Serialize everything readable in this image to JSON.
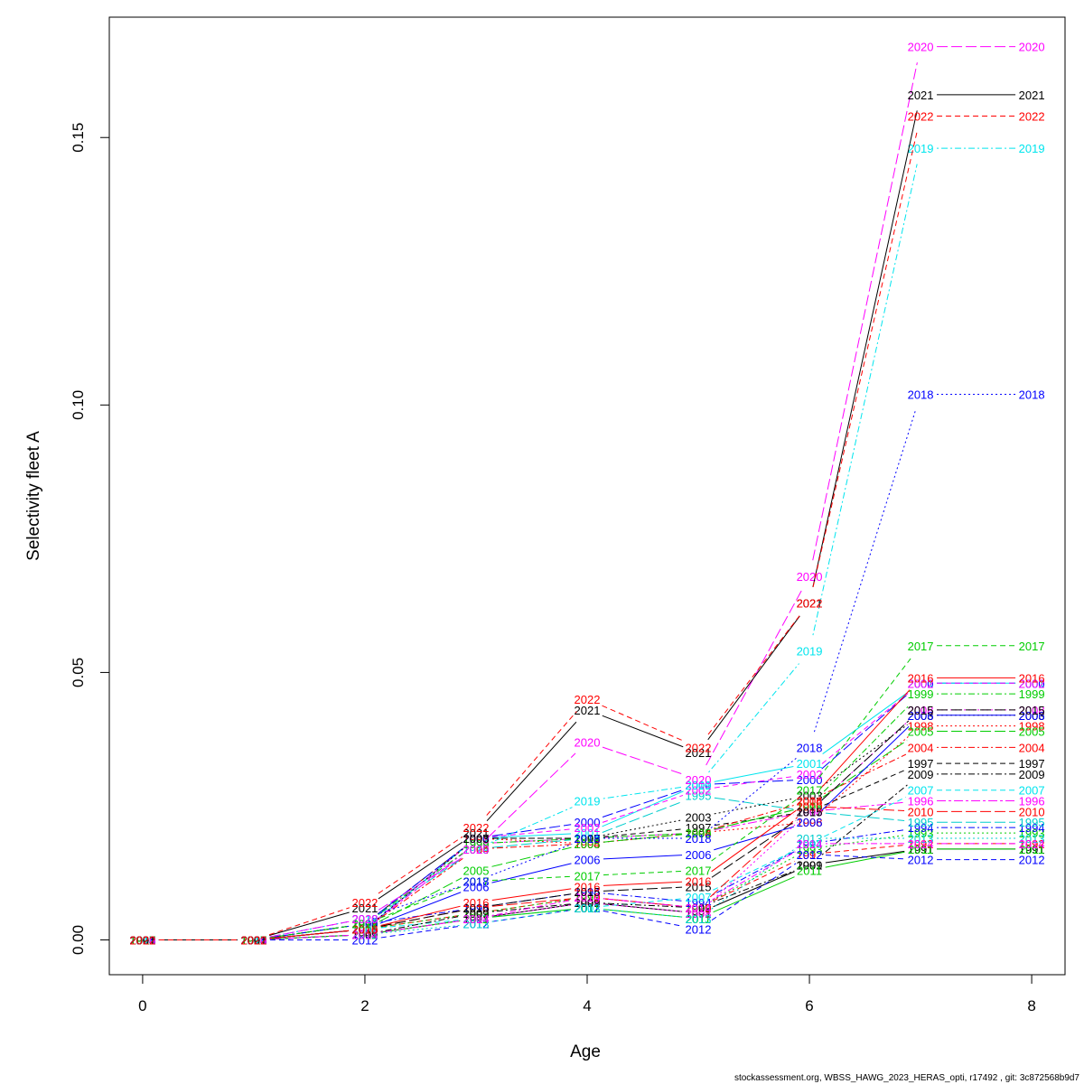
{
  "footer": "stockassessment.org, WBSS_HAWG_2023_HERAS_opti, r17492 , git: 3c872568b9d7",
  "chart_data": {
    "type": "line",
    "title": "",
    "xlabel": "Age",
    "ylabel": "Selectivity fleet A",
    "xlim": [
      -0.3,
      8.3
    ],
    "ylim": [
      -0.0065,
      0.1725
    ],
    "xticks": [
      0,
      2,
      4,
      6,
      8
    ],
    "xtick_labels": [
      "0",
      "2",
      "4",
      "6",
      "8"
    ],
    "yticks": [
      0.0,
      0.05,
      0.1,
      0.15
    ],
    "ytick_labels": [
      "0.00",
      "0.05",
      "0.10",
      "0.15"
    ],
    "x": [
      0,
      1,
      2,
      3,
      4,
      5,
      6,
      7,
      8
    ],
    "grid": false,
    "legend": "none",
    "series": [
      {
        "name": "1991",
        "color": "#000000",
        "dash": "",
        "values": [
          0,
          0,
          0.001,
          0.004,
          0.007,
          0.005,
          0.014,
          0.017,
          0.017
        ]
      },
      {
        "name": "1992",
        "color": "#ff0000",
        "dash": "6,4",
        "values": [
          0,
          0,
          0.002,
          0.005,
          0.008,
          0.006,
          0.016,
          0.018,
          0.018
        ]
      },
      {
        "name": "1993",
        "color": "#00cd00",
        "dash": "2,3",
        "values": [
          0,
          0,
          0.002,
          0.005,
          0.008,
          0.006,
          0.017,
          0.02,
          0.02
        ]
      },
      {
        "name": "1994",
        "color": "#0000ff",
        "dash": "2,3,7,3",
        "values": [
          0,
          0,
          0.003,
          0.006,
          0.009,
          0.007,
          0.018,
          0.021,
          0.021
        ]
      },
      {
        "name": "1995",
        "color": "#00cdcd",
        "dash": "12,4",
        "values": [
          0,
          0,
          0.003,
          0.017,
          0.019,
          0.027,
          0.024,
          0.022,
          0.022
        ]
      },
      {
        "name": "1996",
        "color": "#ff00ff",
        "dash": "10,3,3,3",
        "values": [
          0,
          0,
          0.002,
          0.018,
          0.019,
          0.02,
          0.024,
          0.026,
          0.026
        ]
      },
      {
        "name": "1997",
        "color": "#000000",
        "dash": "6,4",
        "values": [
          0,
          0,
          0.003,
          0.019,
          0.019,
          0.021,
          0.024,
          0.033,
          0.033
        ]
      },
      {
        "name": "1998",
        "color": "#ff0000",
        "dash": "2,3",
        "values": [
          0,
          0,
          0.003,
          0.019,
          0.018,
          0.02,
          0.022,
          0.04,
          0.04
        ]
      },
      {
        "name": "1999",
        "color": "#00cd00",
        "dash": "2,3,7,3",
        "values": [
          0,
          0,
          0.003,
          0.018,
          0.019,
          0.02,
          0.025,
          0.046,
          0.046
        ]
      },
      {
        "name": "2000",
        "color": "#0000ff",
        "dash": "12,4",
        "values": [
          0,
          0,
          0.003,
          0.019,
          0.022,
          0.029,
          0.03,
          0.048,
          0.048
        ]
      },
      {
        "name": "2001",
        "color": "#00e5ee",
        "dash": "",
        "values": [
          0,
          0,
          0.002,
          0.019,
          0.02,
          0.029,
          0.033,
          0.048,
          0.048
        ]
      },
      {
        "name": "2002",
        "color": "#ff00ff",
        "dash": "6,4",
        "values": [
          0,
          0,
          0.002,
          0.019,
          0.021,
          0.028,
          0.031,
          0.048,
          0.048
        ]
      },
      {
        "name": "2003",
        "color": "#000000",
        "dash": "2,3",
        "values": [
          0,
          0,
          0.002,
          0.019,
          0.019,
          0.023,
          0.027,
          0.042,
          0.042
        ]
      },
      {
        "name": "2004",
        "color": "#ff0000",
        "dash": "2,3,7,3",
        "values": [
          0,
          0,
          0.002,
          0.017,
          0.018,
          0.02,
          0.026,
          0.036,
          0.036
        ]
      },
      {
        "name": "2005",
        "color": "#00cd00",
        "dash": "12,4",
        "values": [
          0,
          0,
          0.002,
          0.013,
          0.018,
          0.02,
          0.025,
          0.039,
          0.039
        ]
      },
      {
        "name": "2006",
        "color": "#0000ff",
        "dash": "",
        "values": [
          0,
          0,
          0.002,
          0.01,
          0.015,
          0.016,
          0.022,
          0.042,
          0.042
        ]
      },
      {
        "name": "2007",
        "color": "#00e5ee",
        "dash": "6,4",
        "values": [
          0,
          0,
          0.002,
          0.004,
          0.006,
          0.008,
          0.018,
          0.028,
          0.028
        ]
      },
      {
        "name": "2008",
        "color": "#ff00ff",
        "dash": "2,3",
        "values": [
          0,
          0,
          0.001,
          0.004,
          0.007,
          0.005,
          0.024,
          0.043,
          0.043
        ]
      },
      {
        "name": "2009",
        "color": "#000000",
        "dash": "2,3,7,3",
        "values": [
          0,
          0,
          0.001,
          0.005,
          0.007,
          0.006,
          0.014,
          0.031,
          0.031
        ]
      },
      {
        "name": "2010",
        "color": "#ff0000",
        "dash": "12,4",
        "values": [
          0,
          0,
          0.002,
          0.006,
          0.008,
          0.006,
          0.025,
          0.024,
          0.024
        ]
      },
      {
        "name": "2011",
        "color": "#00cd00",
        "dash": "",
        "values": [
          0,
          0,
          0.001,
          0.004,
          0.006,
          0.004,
          0.013,
          0.017,
          0.017
        ]
      },
      {
        "name": "2012",
        "color": "#0000ff",
        "dash": "6,4",
        "values": [
          0,
          0,
          0,
          0.003,
          0.006,
          0.002,
          0.016,
          0.015,
          0.015
        ]
      },
      {
        "name": "2013",
        "color": "#00cdcd",
        "dash": "2,3",
        "values": [
          0,
          0,
          0.001,
          0.003,
          0.006,
          0.004,
          0.019,
          0.019,
          0.019
        ]
      },
      {
        "name": "2014",
        "color": "#ff00ff",
        "dash": "2,3,7,3",
        "values": [
          0,
          0,
          0.001,
          0.004,
          0.008,
          0.006,
          0.018,
          0.018,
          0.018
        ]
      },
      {
        "name": "2015",
        "color": "#000000",
        "dash": "12,4",
        "values": [
          0,
          0,
          0.002,
          0.006,
          0.009,
          0.01,
          0.024,
          0.043,
          0.043
        ]
      },
      {
        "name": "2016",
        "color": "#ff0000",
        "dash": "",
        "values": [
          0,
          0,
          0.002,
          0.007,
          0.01,
          0.011,
          0.026,
          0.049,
          0.049
        ]
      },
      {
        "name": "2017",
        "color": "#00cd00",
        "dash": "6,4",
        "values": [
          0,
          0,
          0.003,
          0.011,
          0.012,
          0.013,
          0.028,
          0.055,
          0.055
        ]
      },
      {
        "name": "2018",
        "color": "#0000ff",
        "dash": "2,3",
        "values": [
          0,
          0,
          0.004,
          0.011,
          0.019,
          0.019,
          0.036,
          0.102,
          0.102
        ]
      },
      {
        "name": "2019",
        "color": "#00e5ee",
        "dash": "2,3,7,3",
        "values": [
          0,
          0,
          0.004,
          0.017,
          0.026,
          0.029,
          0.054,
          0.148,
          0.148
        ]
      },
      {
        "name": "2020",
        "color": "#ff00ff",
        "dash": "12,4",
        "values": [
          0,
          0,
          0.004,
          0.017,
          0.037,
          0.03,
          0.068,
          0.167,
          0.167
        ]
      },
      {
        "name": "2021",
        "color": "#000000",
        "dash": "",
        "values": [
          0,
          0,
          0.006,
          0.02,
          0.043,
          0.035,
          0.063,
          0.158,
          0.158
        ]
      },
      {
        "name": "2022",
        "color": "#ff0000",
        "dash": "6,4",
        "values": [
          0,
          0,
          0.007,
          0.021,
          0.045,
          0.036,
          0.063,
          0.154,
          0.154
        ]
      }
    ]
  }
}
